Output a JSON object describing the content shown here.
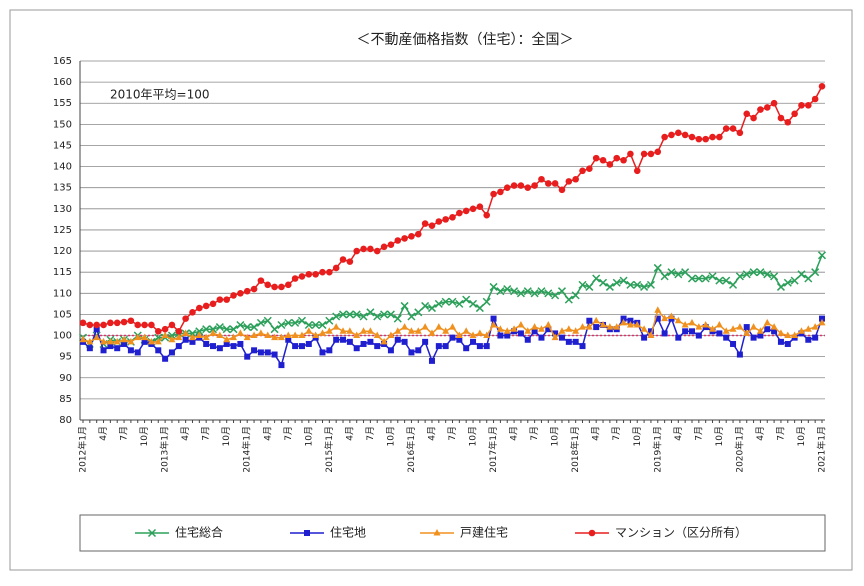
{
  "chart_data": {
    "type": "line",
    "title": "＜不動産価格指数（住宅）：全国＞",
    "annotation": "2010年平均=100",
    "categories": [
      "2012年1月",
      null,
      null,
      "4月",
      null,
      null,
      "7月",
      null,
      null,
      "10月",
      null,
      null,
      "2013年1月",
      null,
      null,
      "4月",
      null,
      null,
      "7月",
      null,
      null,
      "10月",
      null,
      null,
      "2014年1月",
      null,
      null,
      "4月",
      null,
      null,
      "7月",
      null,
      null,
      "10月",
      null,
      null,
      "2015年1月",
      null,
      null,
      "4月",
      null,
      null,
      "7月",
      null,
      null,
      "10月",
      null,
      null,
      "2016年1月",
      null,
      null,
      "4月",
      null,
      null,
      "7月",
      null,
      null,
      "10月",
      null,
      null,
      "2017年1月",
      null,
      null,
      "4月",
      null,
      null,
      "7月",
      null,
      null,
      "10月",
      null,
      null,
      "2018年1月",
      null,
      null,
      "4月",
      null,
      null,
      "7月",
      null,
      null,
      "10月",
      null,
      null,
      "2019年1月",
      null,
      null,
      "4月",
      null,
      null,
      "7月",
      null,
      null,
      "10月",
      null,
      null,
      "2020年1月",
      null,
      null,
      "4月",
      null,
      null,
      "7月",
      null,
      null,
      "10月",
      null,
      null,
      "2021年1月"
    ],
    "series": [
      {
        "name": "住宅総合",
        "color": "#2ca05a",
        "marker": "x",
        "values": [
          99.5,
          98,
          100,
          98,
          99,
          98.5,
          99,
          98.5,
          100,
          99,
          98.5,
          99.5,
          99.5,
          100,
          100.5,
          100.5,
          100.5,
          101,
          101.5,
          101.5,
          102,
          101.5,
          101.5,
          102.5,
          102,
          102,
          103,
          103.5,
          101.5,
          102.5,
          103,
          103,
          103.5,
          102.5,
          102.5,
          102.5,
          103.5,
          104.5,
          105,
          105,
          105,
          104.5,
          105.5,
          104.5,
          105,
          105,
          104,
          107,
          104.5,
          105.5,
          107,
          106.5,
          107.5,
          108,
          108,
          107.5,
          108.5,
          107.5,
          106.5,
          108,
          111.5,
          110.5,
          111,
          110.5,
          110,
          110.5,
          110,
          110.5,
          110,
          109.5,
          110.5,
          108.5,
          109.5,
          112,
          111.5,
          113.5,
          112.5,
          111.5,
          112.5,
          113,
          112,
          112,
          111.5,
          112,
          116,
          114,
          115,
          114.5,
          115,
          113.5,
          113.5,
          113.5,
          114,
          113,
          113,
          112,
          114,
          114.5,
          115,
          115,
          114.5,
          114,
          111.5,
          112.5,
          113,
          114.5,
          113.5,
          115,
          119
        ]
      },
      {
        "name": "住宅地",
        "color": "#1f1fd0",
        "marker": "square",
        "values": [
          98.5,
          97,
          101.5,
          96.5,
          97.5,
          97,
          98,
          96.5,
          96,
          98.5,
          98,
          96.5,
          94.5,
          96,
          97.5,
          99,
          98.5,
          99.5,
          98,
          97.5,
          97,
          98,
          97.5,
          98,
          95,
          96.5,
          96,
          96,
          95.5,
          93,
          99,
          97.5,
          97.5,
          98,
          99.5,
          96,
          96.5,
          99,
          99,
          98.5,
          97,
          98,
          98.5,
          97.5,
          98,
          96.5,
          99,
          98.5,
          96,
          96.5,
          98.5,
          94,
          97.5,
          97.5,
          99.5,
          99,
          97,
          98.5,
          97.5,
          97.5,
          104,
          100,
          100,
          101,
          100.5,
          99,
          101,
          99.5,
          101.5,
          100.5,
          99.5,
          98.5,
          98.5,
          97.5,
          103.5,
          102,
          102.5,
          101.5,
          101.5,
          104,
          103.5,
          103,
          99.5,
          101,
          104,
          100.5,
          104,
          99.5,
          101,
          101,
          100,
          102,
          101,
          100.5,
          99.5,
          98,
          95.5,
          102,
          99.5,
          100,
          101.5,
          101,
          98.5,
          98,
          99.5,
          100.5,
          99,
          99.5,
          104
        ]
      },
      {
        "name": "戸建住宅",
        "color": "#f0901e",
        "marker": "triangle",
        "values": [
          99,
          98.5,
          99.5,
          98.5,
          98.5,
          98.5,
          99,
          98.5,
          99.5,
          99.5,
          98.5,
          98.5,
          100,
          99,
          99.5,
          100.5,
          99.5,
          100,
          99.5,
          100.5,
          100,
          99,
          99.5,
          100.5,
          99.5,
          100,
          100.5,
          100,
          99.5,
          99.5,
          100,
          100,
          100,
          101,
          100,
          100.5,
          101,
          102,
          101,
          101,
          100,
          101,
          101,
          100,
          98.5,
          100,
          101,
          102,
          101,
          101,
          102,
          100.5,
          102,
          101,
          102,
          100,
          101,
          100,
          100.5,
          100,
          102.5,
          101.5,
          101,
          101.5,
          102.5,
          101,
          102,
          101.5,
          102.5,
          99.5,
          101,
          101.5,
          101,
          102,
          102,
          103.5,
          102.5,
          102,
          102,
          103,
          102.5,
          102.5,
          101.5,
          100,
          106,
          104,
          104.5,
          103.5,
          102.5,
          103,
          102,
          102.5,
          101.5,
          102.5,
          101,
          101.5,
          102,
          100.5,
          102,
          101,
          103,
          102,
          100.5,
          100,
          100,
          101,
          101.5,
          102,
          103
        ]
      },
      {
        "name": "マンション（区分所有）",
        "color": "#e81e1e",
        "marker": "circle",
        "values": [
          103,
          102.5,
          102.5,
          102.5,
          103,
          103,
          103.2,
          103.5,
          102.5,
          102.5,
          102.5,
          101,
          101.5,
          102.5,
          101,
          104,
          105.5,
          106.5,
          107,
          107.5,
          108.5,
          108.5,
          109.5,
          110,
          110.5,
          111,
          113,
          112,
          111.5,
          111.5,
          112,
          113.5,
          114,
          114.5,
          114.5,
          115,
          115,
          116,
          118,
          117.5,
          120,
          120.5,
          120.5,
          120,
          121,
          121.5,
          122.5,
          123,
          123.5,
          124,
          126.5,
          126,
          127,
          127.5,
          128,
          129,
          129.5,
          130,
          130.5,
          128.5,
          133.5,
          134,
          135,
          135.5,
          135.5,
          135,
          135.5,
          137,
          136,
          136,
          134.5,
          136.5,
          137,
          139,
          139.5,
          142,
          141.5,
          140.5,
          142,
          141.5,
          143,
          139,
          143,
          143,
          143.5,
          147,
          147.5,
          148,
          147.5,
          147,
          146.5,
          146.5,
          147,
          147,
          149,
          149,
          148,
          152.5,
          151.5,
          153.5,
          154,
          155,
          151.5,
          150.5,
          152.5,
          154.5,
          154.5,
          156,
          159
        ]
      }
    ],
    "hline": 100,
    "hline_color": "#e0306a",
    "ylim": [
      80,
      165
    ],
    "yticks": [
      80,
      85,
      90,
      95,
      100,
      105,
      110,
      115,
      120,
      125,
      130,
      135,
      140,
      145,
      150,
      155,
      160,
      165
    ],
    "grid": true,
    "legend": "bottom"
  }
}
